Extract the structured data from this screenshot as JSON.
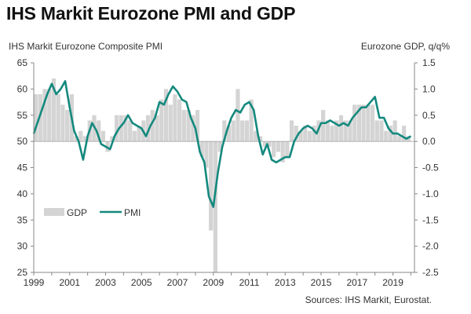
{
  "title": "IHS Markit Eurozone PMI and GDP",
  "left_axis_title": "IHS Markit Eurozone Composite PMI",
  "right_axis_title": "Eurozone GDP, q/q%",
  "source": "Sources: IHS Markit, Eurostat.",
  "colors": {
    "gdp": "#d4d4d4",
    "pmi": "#14897e",
    "axis": "#888888"
  },
  "chart_data": {
    "type": "bar+line",
    "title": "IHS Markit Eurozone PMI and GDP",
    "x_axis": {
      "range": [
        1999.0,
        2020.2
      ],
      "ticks": [
        1999,
        2001,
        2003,
        2005,
        2007,
        2009,
        2011,
        2013,
        2015,
        2017,
        2019
      ]
    },
    "y_left": {
      "label": "IHS Markit Eurozone Composite PMI",
      "range": [
        25,
        65
      ],
      "ticks": [
        25,
        30,
        35,
        40,
        45,
        50,
        55,
        60,
        65
      ]
    },
    "y_right": {
      "label": "Eurozone GDP, q/q%",
      "range": [
        -2.5,
        1.5
      ],
      "ticks": [
        "-2.5",
        "-2.0",
        "-1.5",
        "-1.0",
        "-0.5",
        "0.0",
        "0.5",
        "1.0",
        "1.5"
      ]
    },
    "legend": {
      "placement": "lower-left",
      "entries": [
        "GDP",
        "PMI"
      ]
    },
    "grid": false,
    "series": [
      {
        "name": "GDP",
        "type": "bar",
        "axis": "right",
        "x": [
          1999.0,
          1999.25,
          1999.5,
          1999.75,
          2000.0,
          2000.25,
          2000.5,
          2000.75,
          2001.0,
          2001.25,
          2001.5,
          2001.75,
          2002.0,
          2002.25,
          2002.5,
          2002.75,
          2003.0,
          2003.25,
          2003.5,
          2003.75,
          2004.0,
          2004.25,
          2004.5,
          2004.75,
          2005.0,
          2005.25,
          2005.5,
          2005.75,
          2006.0,
          2006.25,
          2006.5,
          2006.75,
          2007.0,
          2007.25,
          2007.5,
          2007.75,
          2008.0,
          2008.25,
          2008.5,
          2008.75,
          2009.0,
          2009.25,
          2009.5,
          2009.75,
          2010.0,
          2010.25,
          2010.5,
          2010.75,
          2011.0,
          2011.25,
          2011.5,
          2011.75,
          2012.0,
          2012.25,
          2012.5,
          2012.75,
          2013.0,
          2013.25,
          2013.5,
          2013.75,
          2014.0,
          2014.25,
          2014.5,
          2014.75,
          2015.0,
          2015.25,
          2015.5,
          2015.75,
          2016.0,
          2016.25,
          2016.5,
          2016.75,
          2017.0,
          2017.25,
          2017.5,
          2017.75,
          2018.0,
          2018.25,
          2018.5,
          2018.75,
          2019.0,
          2019.25,
          2019.5,
          2019.75
        ],
        "values": [
          0.9,
          0.9,
          1.0,
          1.0,
          1.2,
          0.9,
          0.7,
          0.6,
          0.9,
          0.1,
          0.2,
          0.1,
          0.4,
          0.5,
          0.4,
          0.2,
          -0.2,
          0.1,
          0.5,
          0.5,
          0.5,
          0.4,
          0.2,
          0.3,
          0.4,
          0.5,
          0.6,
          0.5,
          0.8,
          1.0,
          0.7,
          0.9,
          0.8,
          0.6,
          0.6,
          0.5,
          0.6,
          -0.3,
          -0.5,
          -1.7,
          -2.5,
          -0.2,
          0.4,
          0.3,
          0.4,
          1.0,
          0.4,
          0.4,
          0.8,
          0.2,
          0.1,
          -0.1,
          -0.1,
          -0.3,
          -0.2,
          -0.4,
          -0.3,
          0.4,
          0.3,
          0.2,
          0.3,
          0.2,
          0.3,
          0.4,
          0.6,
          0.4,
          0.3,
          0.4,
          0.5,
          0.4,
          0.4,
          0.7,
          0.7,
          0.7,
          0.7,
          0.7,
          0.4,
          0.4,
          0.2,
          0.3,
          0.4,
          0.1,
          0.3,
          0.1
        ]
      },
      {
        "name": "PMI",
        "type": "line",
        "axis": "left",
        "x": [
          1999.0,
          1999.25,
          1999.5,
          1999.75,
          2000.0,
          2000.25,
          2000.5,
          2000.75,
          2001.0,
          2001.25,
          2001.5,
          2001.75,
          2002.0,
          2002.25,
          2002.5,
          2002.75,
          2003.0,
          2003.25,
          2003.5,
          2003.75,
          2004.0,
          2004.25,
          2004.5,
          2004.75,
          2005.0,
          2005.25,
          2005.5,
          2005.75,
          2006.0,
          2006.25,
          2006.5,
          2006.75,
          2007.0,
          2007.25,
          2007.5,
          2007.75,
          2008.0,
          2008.25,
          2008.5,
          2008.75,
          2009.0,
          2009.25,
          2009.5,
          2009.75,
          2010.0,
          2010.25,
          2010.5,
          2010.75,
          2011.0,
          2011.25,
          2011.5,
          2011.75,
          2012.0,
          2012.25,
          2012.5,
          2012.75,
          2013.0,
          2013.25,
          2013.5,
          2013.75,
          2014.0,
          2014.25,
          2014.5,
          2014.75,
          2015.0,
          2015.25,
          2015.5,
          2015.75,
          2016.0,
          2016.25,
          2016.5,
          2016.75,
          2017.0,
          2017.25,
          2017.5,
          2017.75,
          2018.0,
          2018.25,
          2018.5,
          2018.75,
          2019.0,
          2019.25,
          2019.5,
          2019.75,
          2020.0
        ],
        "values": [
          51.5,
          54.0,
          56.5,
          59.0,
          61.0,
          59.0,
          60.0,
          61.5,
          56.5,
          52.0,
          50.0,
          46.5,
          51.0,
          53.5,
          52.0,
          49.5,
          49.0,
          48.5,
          51.0,
          52.5,
          53.5,
          55.0,
          53.5,
          53.0,
          52.5,
          51.0,
          53.0,
          54.5,
          57.5,
          57.0,
          59.0,
          60.5,
          59.5,
          58.0,
          57.5,
          54.5,
          52.5,
          48.0,
          46.0,
          39.5,
          37.5,
          44.0,
          49.0,
          52.0,
          54.5,
          56.0,
          55.5,
          57.0,
          57.5,
          56.0,
          51.0,
          47.5,
          49.5,
          46.5,
          46.0,
          46.5,
          47.0,
          47.0,
          50.0,
          51.5,
          52.5,
          53.0,
          52.5,
          51.5,
          53.5,
          53.5,
          54.0,
          53.5,
          53.0,
          53.5,
          53.0,
          54.5,
          55.5,
          56.5,
          56.5,
          57.5,
          58.5,
          54.5,
          54.5,
          52.5,
          51.5,
          51.5,
          51.0,
          50.5,
          51.0
        ]
      }
    ]
  }
}
